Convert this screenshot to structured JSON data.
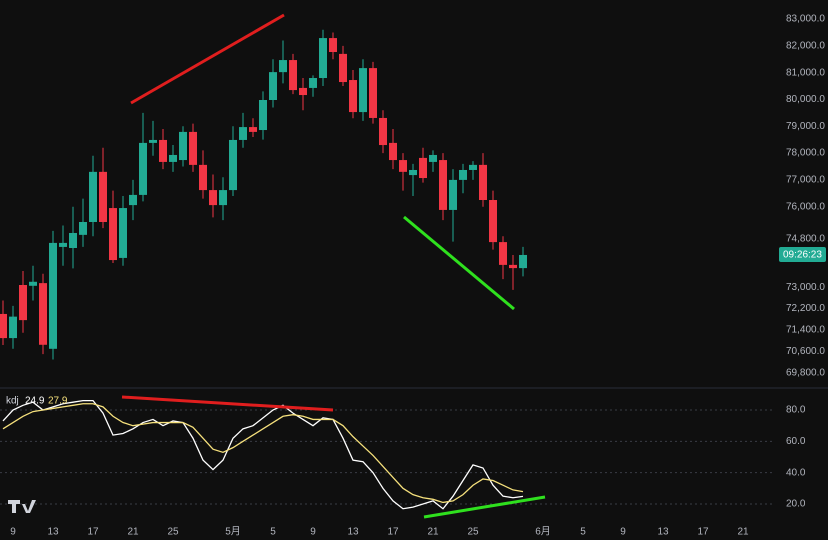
{
  "chart_data": [
    {
      "type": "candlestick",
      "up_color": "#22ab94",
      "down_color": "#f23645",
      "countdown": "09:26:23",
      "ylim": [
        69350,
        83710
      ],
      "yticks": [
        {
          "value": 83000,
          "label": "83,000.0"
        },
        {
          "value": 82000,
          "label": "82,000.0"
        },
        {
          "value": 81000,
          "label": "81,000.0"
        },
        {
          "value": 80000,
          "label": "80,000.0"
        },
        {
          "value": 79000,
          "label": "79,000.0"
        },
        {
          "value": 78000,
          "label": "78,000.0"
        },
        {
          "value": 77000,
          "label": "77,000.0"
        },
        {
          "value": 76000,
          "label": "76,000.0"
        },
        {
          "value": 74800,
          "label": "74,800.0"
        },
        {
          "value": 73000,
          "label": "73,000.0"
        },
        {
          "value": 72200,
          "label": "72,200.0"
        },
        {
          "value": 71400,
          "label": "71,400.0"
        },
        {
          "value": 70600,
          "label": "70,600.0"
        },
        {
          "value": 69800,
          "label": "69,800.0"
        }
      ],
      "open": [
        72000,
        71100,
        73080,
        73050,
        73150,
        70700,
        74500,
        74460,
        74950,
        75430,
        77300,
        75950,
        74090,
        76060,
        76440,
        78380,
        78490,
        77670,
        77740,
        78790,
        77560,
        76620,
        76060,
        76620,
        78490,
        78970,
        78860,
        79980,
        81020,
        81470,
        80430,
        80430,
        80800,
        82290,
        81700,
        80725,
        79530,
        81170,
        79310,
        78380,
        77740,
        77180,
        77820,
        77670,
        77740,
        75880,
        77000,
        77370,
        77560,
        76250,
        74680,
        73830,
        73710
      ],
      "high": [
        72500,
        72300,
        73600,
        73800,
        73500,
        75100,
        75300,
        76000,
        76300,
        77900,
        78200,
        76600,
        76400,
        77000,
        79500,
        79200,
        78900,
        78300,
        79000,
        79100,
        78100,
        77200,
        77100,
        79000,
        79500,
        79300,
        80300,
        81500,
        82200,
        81700,
        80800,
        80900,
        82600,
        82500,
        82000,
        81100,
        81500,
        81400,
        79600,
        78900,
        78000,
        77600,
        78200,
        78100,
        78000,
        77400,
        77600,
        77700,
        78000,
        76600,
        74900,
        74200,
        74500
      ],
      "low": [
        70840,
        70700,
        71300,
        72500,
        70500,
        70300,
        73800,
        73700,
        74500,
        74900,
        75200,
        73900,
        73800,
        75500,
        76200,
        77900,
        77400,
        77300,
        77500,
        77300,
        76300,
        75600,
        75500,
        76400,
        78200,
        78600,
        78500,
        79700,
        80600,
        80200,
        79600,
        80100,
        80500,
        81500,
        80500,
        79300,
        79200,
        79100,
        78000,
        77400,
        76600,
        76400,
        76900,
        77300,
        75500,
        74700,
        76500,
        77000,
        76000,
        74400,
        73300,
        72900,
        73400
      ],
      "close": [
        71100,
        71900,
        71770,
        73200,
        70850,
        74650,
        74650,
        75020,
        75430,
        77300,
        75430,
        74010,
        75950,
        76440,
        78380,
        78490,
        77670,
        77930,
        78790,
        77560,
        76620,
        76060,
        76620,
        78490,
        78970,
        78790,
        79980,
        81020,
        81470,
        80350,
        80165,
        80800,
        82290,
        81770,
        80650,
        79530,
        81170,
        79310,
        78300,
        77740,
        77300,
        77370,
        77070,
        77930,
        75880,
        77000,
        77370,
        77560,
        76250,
        74680,
        73830,
        73710,
        74200
      ]
    },
    {
      "type": "line",
      "title": "kdj",
      "categories": [
        null,
        "9",
        null,
        null,
        null,
        "13",
        null,
        null,
        null,
        "17",
        null,
        null,
        null,
        "21",
        null,
        null,
        null,
        "25",
        null,
        null,
        null,
        null,
        null,
        "5月",
        null,
        null,
        null,
        "5",
        null,
        null,
        null,
        "9",
        null,
        null,
        null,
        "13",
        null,
        null,
        null,
        "17",
        null,
        null,
        null,
        "21",
        null,
        null,
        null,
        "25",
        null,
        null,
        null,
        null,
        null,
        null,
        "6月",
        null,
        null,
        null,
        "5",
        null,
        null,
        null,
        "9",
        null,
        null,
        null,
        "13",
        null,
        null,
        null,
        "17",
        null,
        null,
        null,
        "21",
        null
      ],
      "ylim": [
        9.8,
        91.5
      ],
      "yticks": [
        {
          "value": 80,
          "label": "80.0"
        },
        {
          "value": 60,
          "label": "60.0"
        },
        {
          "value": 40,
          "label": "40.0"
        },
        {
          "value": 20,
          "label": "20.0"
        }
      ],
      "grid": true,
      "series": [
        {
          "color": "#ffffff",
          "values": [
            73,
            80,
            83,
            85,
            80,
            82,
            84,
            85,
            86,
            86,
            78,
            64,
            65,
            68,
            72,
            74,
            70,
            73,
            72,
            62,
            48,
            42,
            48,
            62,
            68,
            70,
            75,
            80,
            83,
            78,
            74,
            70,
            75,
            74,
            62,
            48,
            47,
            40,
            30,
            22,
            17,
            18,
            20,
            22,
            17,
            25,
            35,
            45,
            43,
            32,
            25,
            24,
            24.9,
            null,
            null,
            null,
            null,
            null,
            null,
            null,
            null,
            null,
            null,
            null,
            null,
            null,
            null,
            null,
            null,
            null,
            null,
            null,
            null,
            null,
            null,
            null
          ]
        },
        {
          "color": "#f5e07c",
          "values": [
            68,
            72,
            76,
            79,
            80,
            81,
            82,
            83,
            84,
            84,
            82,
            76,
            72,
            70,
            71,
            72,
            72,
            72,
            72,
            69,
            62,
            55,
            53,
            56,
            60,
            64,
            68,
            72,
            76,
            77,
            76,
            74,
            74,
            74,
            70,
            63,
            57,
            51,
            44,
            37,
            30,
            26,
            24,
            23,
            21,
            22,
            26,
            32,
            36,
            35,
            32,
            29,
            27.9,
            null,
            null,
            null,
            null,
            null,
            null,
            null,
            null,
            null,
            null,
            null,
            null,
            null,
            null,
            null,
            null,
            null,
            null,
            null,
            null,
            null,
            null,
            null
          ]
        }
      ]
    }
  ]
}
